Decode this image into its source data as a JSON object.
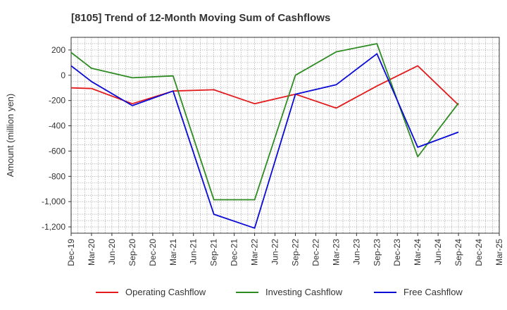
{
  "chart_data": {
    "type": "line",
    "title": "[8105]  Trend of 12-Month Moving Sum of Cashflows",
    "xlabel": "",
    "ylabel": "Amount (million yen)",
    "ylim": [
      -1250,
      300
    ],
    "yticks": [
      200,
      0,
      -200,
      -400,
      -600,
      -800,
      -1000,
      -1200
    ],
    "ytick_labels": [
      "200",
      "0",
      "-200",
      "-400",
      "-600",
      "-800",
      "-1,000",
      "-1,200"
    ],
    "categories": [
      "Dec-19",
      "Mar-20",
      "Jun-20",
      "Sep-20",
      "Dec-20",
      "Mar-21",
      "Jun-21",
      "Sep-21",
      "Dec-21",
      "Mar-22",
      "Jun-22",
      "Sep-22",
      "Dec-22",
      "Mar-23",
      "Jun-23",
      "Sep-23",
      "Dec-23",
      "Mar-24",
      "Jun-24",
      "Sep-24",
      "Dec-24",
      "Mar-25"
    ],
    "grid": true,
    "legend_position": "bottom",
    "series": [
      {
        "name": "Operating Cashflow",
        "color": "#e31a1c",
        "values": [
          -100,
          -105,
          null,
          -225,
          null,
          -125,
          null,
          -115,
          null,
          -225,
          null,
          -150,
          null,
          -260,
          null,
          -85,
          null,
          75,
          null,
          -235,
          null,
          null
        ]
      },
      {
        "name": "Investing Cashflow",
        "color": "#2e8b22",
        "values": [
          180,
          55,
          null,
          -20,
          null,
          -5,
          null,
          -985,
          null,
          -985,
          null,
          0,
          null,
          185,
          null,
          250,
          null,
          -645,
          null,
          -220,
          null,
          null
        ]
      },
      {
        "name": "Free Cashflow",
        "color": "#0a0ad6",
        "values": [
          75,
          -50,
          null,
          -240,
          null,
          -125,
          null,
          -1100,
          null,
          -1210,
          null,
          -150,
          null,
          -75,
          null,
          170,
          null,
          -570,
          null,
          -450,
          null,
          null
        ]
      }
    ]
  }
}
